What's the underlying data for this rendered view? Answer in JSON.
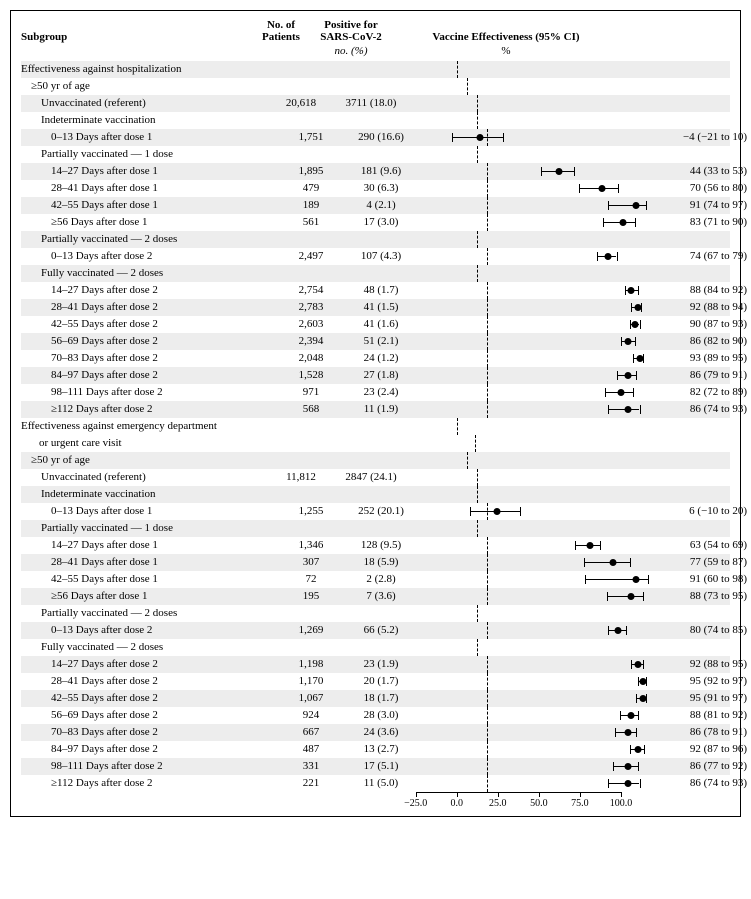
{
  "headers": {
    "subgroup": "Subgroup",
    "n": "No. of\nPatients",
    "pos": "Positive for\nSARS-CoV-2",
    "ve": "Vaccine Effectiveness (95% CI)",
    "sub_pos": "no. (%)",
    "sub_ve": "%"
  },
  "axis": {
    "min": -40,
    "max": 100,
    "ticks": [
      -25,
      0,
      25,
      50,
      75,
      100
    ],
    "labels": [
      "−25.0",
      "0.0",
      "25.0",
      "50.0",
      "75.0",
      "100.0"
    ]
  },
  "colors": {
    "shade": "#ededed",
    "text": "#000000",
    "bg": "#ffffff"
  },
  "rows": [
    {
      "label": "Effectiveness against hospitalization",
      "indent": 0,
      "shade": true
    },
    {
      "label": "≥50 yr of age",
      "indent": 1,
      "shade": false
    },
    {
      "label": "Unvaccinated (referent)",
      "indent": 2,
      "shade": true,
      "n": "20,618",
      "pos": "3711 (18.0)"
    },
    {
      "label": "Indeterminate vaccination",
      "indent": 2,
      "shade": false
    },
    {
      "label": "0–13 Days after dose 1",
      "indent": 3,
      "shade": true,
      "n": "1,751",
      "pos": "290 (16.6)",
      "ve": -4,
      "lo": -21,
      "hi": 10,
      "ve_txt": "−4 (−21 to 10)"
    },
    {
      "label": "Partially vaccinated — 1 dose",
      "indent": 2,
      "shade": false
    },
    {
      "label": "14–27 Days after dose 1",
      "indent": 3,
      "shade": true,
      "n": "1,895",
      "pos": "181 (9.6)",
      "ve": 44,
      "lo": 33,
      "hi": 53,
      "ve_txt": "44 (33 to 53)"
    },
    {
      "label": "28–41 Days after dose 1",
      "indent": 3,
      "shade": false,
      "n": "479",
      "pos": "30 (6.3)",
      "ve": 70,
      "lo": 56,
      "hi": 80,
      "ve_txt": "70 (56 to 80)"
    },
    {
      "label": "42–55 Days after dose 1",
      "indent": 3,
      "shade": true,
      "n": "189",
      "pos": "4 (2.1)",
      "ve": 91,
      "lo": 74,
      "hi": 97,
      "ve_txt": "91 (74 to 97)"
    },
    {
      "label": "≥56 Days after dose 1",
      "indent": 3,
      "shade": false,
      "n": "561",
      "pos": "17 (3.0)",
      "ve": 83,
      "lo": 71,
      "hi": 90,
      "ve_txt": "83 (71 to 90)"
    },
    {
      "label": "Partially vaccinated — 2 doses",
      "indent": 2,
      "shade": true
    },
    {
      "label": "0–13 Days after dose 2",
      "indent": 3,
      "shade": false,
      "n": "2,497",
      "pos": "107 (4.3)",
      "ve": 74,
      "lo": 67,
      "hi": 79,
      "ve_txt": "74 (67 to 79)"
    },
    {
      "label": "Fully vaccinated — 2 doses",
      "indent": 2,
      "shade": true
    },
    {
      "label": "14–27 Days after dose 2",
      "indent": 3,
      "shade": false,
      "n": "2,754",
      "pos": "48 (1.7)",
      "ve": 88,
      "lo": 84,
      "hi": 92,
      "ve_txt": "88 (84 to 92)"
    },
    {
      "label": "28–41 Days after dose 2",
      "indent": 3,
      "shade": true,
      "n": "2,783",
      "pos": "41 (1.5)",
      "ve": 92,
      "lo": 88,
      "hi": 94,
      "ve_txt": "92 (88 to 94)"
    },
    {
      "label": "42–55 Days after dose 2",
      "indent": 3,
      "shade": false,
      "n": "2,603",
      "pos": "41 (1.6)",
      "ve": 90,
      "lo": 87,
      "hi": 93,
      "ve_txt": "90 (87 to 93)"
    },
    {
      "label": "56–69 Days after dose 2",
      "indent": 3,
      "shade": true,
      "n": "2,394",
      "pos": "51 (2.1)",
      "ve": 86,
      "lo": 82,
      "hi": 90,
      "ve_txt": "86 (82 to 90)"
    },
    {
      "label": "70–83 Days after dose 2",
      "indent": 3,
      "shade": false,
      "n": "2,048",
      "pos": "24 (1.2)",
      "ve": 93,
      "lo": 89,
      "hi": 95,
      "ve_txt": "93 (89 to 95)"
    },
    {
      "label": "84–97 Days after dose 2",
      "indent": 3,
      "shade": true,
      "n": "1,528",
      "pos": "27 (1.8)",
      "ve": 86,
      "lo": 79,
      "hi": 91,
      "ve_txt": "86 (79 to 91)"
    },
    {
      "label": "98–111 Days after dose 2",
      "indent": 3,
      "shade": false,
      "n": "971",
      "pos": "23 (2.4)",
      "ve": 82,
      "lo": 72,
      "hi": 89,
      "ve_txt": "82 (72 to 89)"
    },
    {
      "label": "≥112 Days after dose 2",
      "indent": 3,
      "shade": true,
      "n": "568",
      "pos": "11 (1.9)",
      "ve": 86,
      "lo": 74,
      "hi": 93,
      "ve_txt": "86 (74 to 93)"
    },
    {
      "label": "Effectiveness against emergency department",
      "indent": 0,
      "shade": false,
      "cont": "or urgent care visit"
    },
    {
      "label": "≥50 yr of age",
      "indent": 1,
      "shade": true
    },
    {
      "label": "Unvaccinated (referent)",
      "indent": 2,
      "shade": false,
      "n": "11,812",
      "pos": "2847 (24.1)"
    },
    {
      "label": "Indeterminate vaccination",
      "indent": 2,
      "shade": true
    },
    {
      "label": "0–13 Days after dose 1",
      "indent": 3,
      "shade": false,
      "n": "1,255",
      "pos": "252 (20.1)",
      "ve": 6,
      "lo": -10,
      "hi": 20,
      "ve_txt": "6 (−10 to 20)"
    },
    {
      "label": "Partially vaccinated — 1 dose",
      "indent": 2,
      "shade": true
    },
    {
      "label": "14–27 Days after dose 1",
      "indent": 3,
      "shade": false,
      "n": "1,346",
      "pos": "128 (9.5)",
      "ve": 63,
      "lo": 54,
      "hi": 69,
      "ve_txt": "63 (54 to 69)"
    },
    {
      "label": "28–41 Days after dose 1",
      "indent": 3,
      "shade": true,
      "n": "307",
      "pos": "18 (5.9)",
      "ve": 77,
      "lo": 59,
      "hi": 87,
      "ve_txt": "77 (59 to 87)"
    },
    {
      "label": "42–55 Days after dose 1",
      "indent": 3,
      "shade": false,
      "n": "72",
      "pos": "2 (2.8)",
      "ve": 91,
      "lo": 60,
      "hi": 98,
      "ve_txt": "91 (60 to 98)"
    },
    {
      "label": "≥56 Days after dose 1",
      "indent": 3,
      "shade": true,
      "n": "195",
      "pos": "7 (3.6)",
      "ve": 88,
      "lo": 73,
      "hi": 95,
      "ve_txt": "88 (73 to 95)"
    },
    {
      "label": "Partially vaccinated — 2 doses",
      "indent": 2,
      "shade": false
    },
    {
      "label": "0–13 Days after dose 2",
      "indent": 3,
      "shade": true,
      "n": "1,269",
      "pos": "66 (5.2)",
      "ve": 80,
      "lo": 74,
      "hi": 85,
      "ve_txt": "80 (74 to 85)"
    },
    {
      "label": "Fully vaccinated — 2 doses",
      "indent": 2,
      "shade": false
    },
    {
      "label": "14–27 Days after dose 2",
      "indent": 3,
      "shade": true,
      "n": "1,198",
      "pos": "23 (1.9)",
      "ve": 92,
      "lo": 88,
      "hi": 95,
      "ve_txt": "92 (88 to 95)"
    },
    {
      "label": "28–41 Days after dose 2",
      "indent": 3,
      "shade": false,
      "n": "1,170",
      "pos": "20 (1.7)",
      "ve": 95,
      "lo": 92,
      "hi": 97,
      "ve_txt": "95 (92 to 97)"
    },
    {
      "label": "42–55 Days after dose 2",
      "indent": 3,
      "shade": true,
      "n": "1,067",
      "pos": "18 (1.7)",
      "ve": 95,
      "lo": 91,
      "hi": 97,
      "ve_txt": "95 (91 to 97)"
    },
    {
      "label": "56–69 Days after dose 2",
      "indent": 3,
      "shade": false,
      "n": "924",
      "pos": "28 (3.0)",
      "ve": 88,
      "lo": 81,
      "hi": 92,
      "ve_txt": "88 (81 to 92)"
    },
    {
      "label": "70–83 Days after dose 2",
      "indent": 3,
      "shade": true,
      "n": "667",
      "pos": "24 (3.6)",
      "ve": 86,
      "lo": 78,
      "hi": 91,
      "ve_txt": "86 (78 to 91)"
    },
    {
      "label": "84–97 Days after dose 2",
      "indent": 3,
      "shade": false,
      "n": "487",
      "pos": "13 (2.7)",
      "ve": 92,
      "lo": 87,
      "hi": 96,
      "ve_txt": "92 (87 to 96)"
    },
    {
      "label": "98–111 Days after dose 2",
      "indent": 3,
      "shade": true,
      "n": "331",
      "pos": "17 (5.1)",
      "ve": 86,
      "lo": 77,
      "hi": 92,
      "ve_txt": "86 (77 to 92)"
    },
    {
      "label": "≥112 Days after dose 2",
      "indent": 3,
      "shade": false,
      "n": "221",
      "pos": "11 (5.0)",
      "ve": 86,
      "lo": 74,
      "hi": 93,
      "ve_txt": "86 (74 to 93)"
    }
  ]
}
